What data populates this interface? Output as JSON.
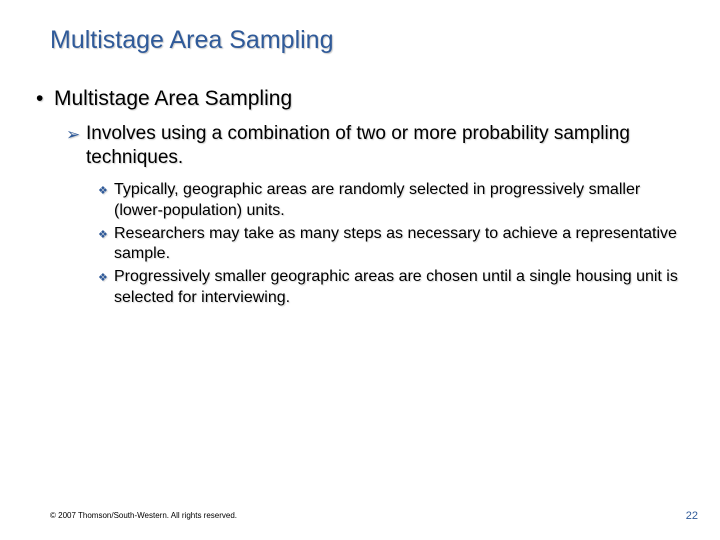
{
  "colors": {
    "title": "#2f5a99",
    "bullet_accent": "#2f5a99",
    "body": "#000000",
    "background": "#ffffff"
  },
  "typography": {
    "family": "Verdana",
    "title_size_pt": 25,
    "lvl1_size_pt": 21,
    "lvl2_size_pt": 19,
    "lvl3_size_pt": 16,
    "footer_size_pt": 8,
    "pagenum_size_pt": 11
  },
  "title": "Multistage Area Sampling",
  "lvl1": {
    "bullet": "•",
    "text": "Multistage Area Sampling"
  },
  "lvl2": [
    {
      "marker": "➢",
      "text": "Involves using a combination of two or more probability sampling techniques."
    }
  ],
  "lvl3": [
    {
      "marker": "❖",
      "text": "Typically, geographic areas are randomly selected in progressively smaller (lower-population) units."
    },
    {
      "marker": "❖",
      "text": "Researchers may take as many steps as necessary to achieve a representative sample."
    },
    {
      "marker": "❖",
      "text": "Progressively smaller geographic areas are chosen until a single housing unit is selected for interviewing."
    }
  ],
  "footer": {
    "copyright": "© 2007 Thomson/South-Western. All rights reserved.",
    "page_number": "22"
  }
}
